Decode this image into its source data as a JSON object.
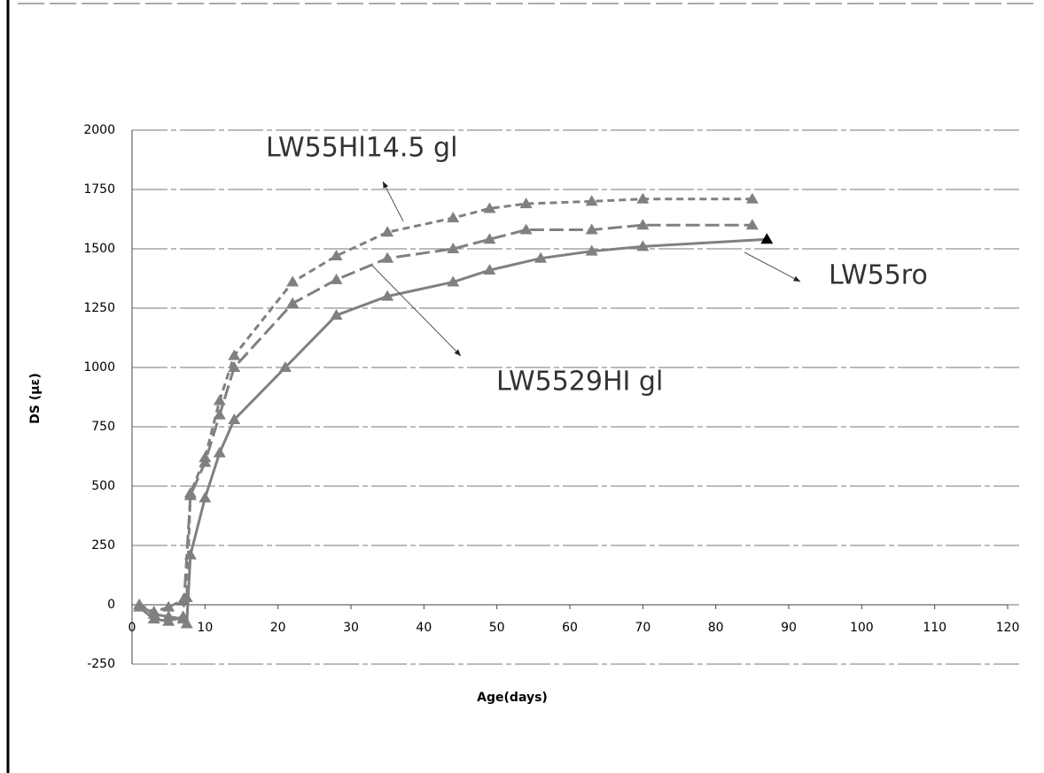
{
  "chart_data": {
    "type": "line",
    "y_label": "DS (με)",
    "x_label": "Age(days)",
    "xlim": [
      0,
      120
    ],
    "xticks": [
      0,
      10,
      20,
      30,
      40,
      50,
      60,
      70,
      80,
      90,
      100,
      110,
      120
    ],
    "ylim": [
      -250,
      2000
    ],
    "yticks": [
      -250,
      0,
      250,
      500,
      750,
      1000,
      1250,
      1500,
      1750,
      2000
    ],
    "grid": true,
    "series": [
      {
        "name": "LW55Hl14.5 gl",
        "color": "#808080",
        "line_style": "dashed",
        "x": [
          1,
          3,
          5,
          7,
          7.5,
          8,
          10,
          12,
          14,
          22,
          28,
          35,
          44,
          49,
          54,
          63,
          70,
          85
        ],
        "values": [
          0,
          -30,
          -10,
          20,
          30,
          470,
          620,
          860,
          1050,
          1360,
          1470,
          1570,
          1630,
          1670,
          1690,
          1700,
          1710,
          1710
        ]
      },
      {
        "name": "LW5529HI gl",
        "color": "#808080",
        "line_style": "long-dashed",
        "x": [
          1,
          3,
          5,
          7,
          8,
          10,
          12,
          14,
          22,
          28,
          35,
          44,
          49,
          54,
          63,
          70,
          85
        ],
        "values": [
          -10,
          -60,
          -70,
          -50,
          460,
          600,
          800,
          1000,
          1270,
          1370,
          1460,
          1500,
          1540,
          1580,
          1580,
          1600,
          1600
        ]
      },
      {
        "name": "LW55ro",
        "color": "#808080",
        "line_style": "solid",
        "x": [
          1,
          3,
          5,
          7,
          7.5,
          8,
          10,
          12,
          14,
          21,
          28,
          35,
          44,
          49,
          56,
          63,
          70,
          87
        ],
        "values": [
          0,
          -40,
          -50,
          -60,
          -80,
          210,
          450,
          640,
          780,
          1000,
          1220,
          1300,
          1360,
          1410,
          1460,
          1490,
          1510,
          1540
        ]
      }
    ]
  }
}
